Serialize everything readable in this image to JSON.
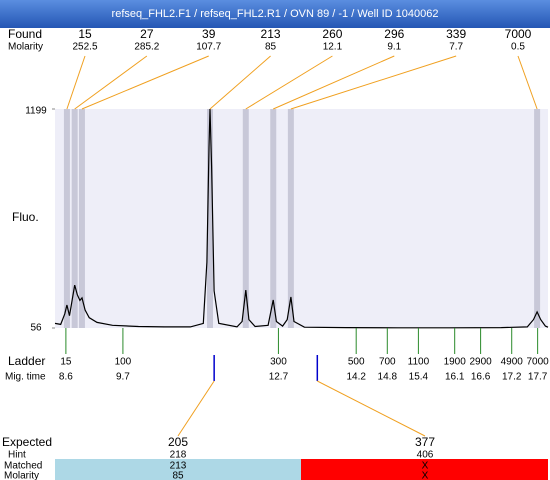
{
  "chart_data": {
    "type": "electropherogram",
    "title": "refseq_FHL2.F1 / refseq_FHL2.R1 / OVN 89 / -1 / Well ID 1040062",
    "found": {
      "label": "Found",
      "molarity_label": "Molarity",
      "sizes": [
        15,
        27,
        39,
        213,
        260,
        296,
        339,
        7000
      ],
      "molarity": [
        252.5,
        285.2,
        107.7,
        85,
        12.1,
        9.1,
        7.7,
        0.5
      ],
      "times": [
        8.62,
        8.77,
        8.91,
        11.38,
        12.07,
        12.6,
        12.94,
        17.69
      ]
    },
    "plot": {
      "ylabel": "Fluo.",
      "ylim": [
        56,
        1199
      ],
      "yticks": [
        56,
        1199
      ],
      "xlim": [
        8.39,
        17.9
      ],
      "trace": {
        "x": [
          8.39,
          8.5,
          8.58,
          8.62,
          8.67,
          8.72,
          8.77,
          8.82,
          8.87,
          8.91,
          8.97,
          9.05,
          9.2,
          9.5,
          10,
          10.5,
          11,
          11.25,
          11.32,
          11.36,
          11.38,
          11.41,
          11.46,
          11.55,
          11.9,
          12.0,
          12.07,
          12.13,
          12.25,
          12.5,
          12.6,
          12.66,
          12.78,
          12.87,
          12.94,
          13.0,
          13.2,
          14,
          15,
          16,
          17,
          17.5,
          17.62,
          17.69,
          17.76,
          17.85,
          17.9
        ],
        "y": [
          80,
          75,
          130,
          176,
          120,
          200,
          280,
          230,
          200,
          213,
          150,
          110,
          85,
          70,
          64,
          62,
          62,
          80,
          400,
          1000,
          1199,
          900,
          250,
          80,
          62,
          90,
          254,
          100,
          64,
          70,
          202,
          90,
          66,
          100,
          218,
          90,
          60,
          58,
          57,
          57,
          58,
          62,
          100,
          140,
          100,
          66,
          60
        ]
      }
    },
    "ladder": {
      "label": "Ladder",
      "time_label": "Mig. time",
      "sizes": [
        15,
        100,
        300,
        500,
        700,
        1100,
        1900,
        2900,
        4900,
        7000
      ],
      "times": [
        8.6,
        9.7,
        12.7,
        14.2,
        14.8,
        15.4,
        16.1,
        16.6,
        17.2,
        17.7
      ]
    },
    "expected": {
      "label": "Expected",
      "hint_label": "Hint",
      "matched_label": "Matched",
      "molarity_label": "Molarity",
      "sizes": [
        205,
        377
      ],
      "times": [
        11.46,
        13.45
      ],
      "hint": [
        218,
        406
      ],
      "matched": [
        213,
        "X"
      ],
      "molarity": [
        85,
        "X"
      ]
    }
  }
}
